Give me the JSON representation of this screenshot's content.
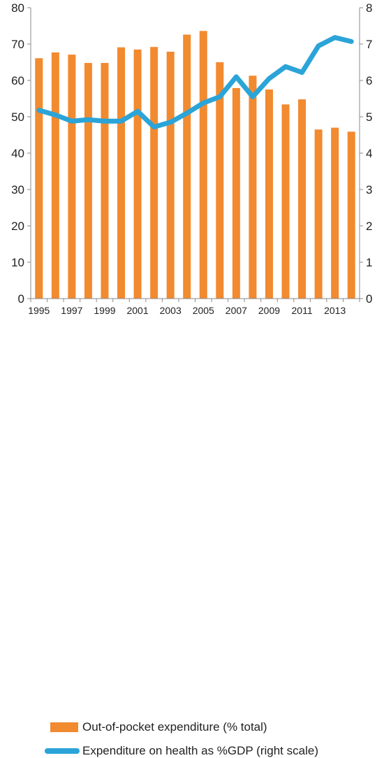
{
  "chart_data": {
    "type": "bar+line",
    "x": [
      1995,
      1996,
      1997,
      1998,
      1999,
      2000,
      2001,
      2002,
      2003,
      2004,
      2005,
      2006,
      2007,
      2008,
      2009,
      2010,
      2011,
      2012,
      2013,
      2014
    ],
    "x_tick_labels": [
      "1995",
      "1997",
      "1999",
      "2001",
      "2003",
      "2005",
      "2007",
      "2009",
      "2011",
      "2013"
    ],
    "left_axis": {
      "min": 0,
      "max": 80,
      "ticks": [
        "0",
        "10",
        "20",
        "30",
        "40",
        "50",
        "60",
        "70",
        "80"
      ]
    },
    "right_axis": {
      "min": 0,
      "max": 8,
      "ticks": [
        "0",
        "1",
        "2",
        "3",
        "4",
        "5",
        "6",
        "7",
        "8"
      ]
    },
    "series": [
      {
        "name": "Out-of-pocket expenditure (% total)",
        "type": "bar",
        "axis": "left",
        "color": "#f28a30",
        "values": [
          66.1,
          67.7,
          67.1,
          64.8,
          64.8,
          69.1,
          68.5,
          69.2,
          67.9,
          72.6,
          73.6,
          65.0,
          57.9,
          61.3,
          57.5,
          53.4,
          54.8,
          46.5,
          47.0,
          45.9
        ]
      },
      {
        "name": "Expenditure on health as %GDP (right scale)",
        "type": "line",
        "axis": "right",
        "color": "#2ba4d8",
        "values": [
          5.18,
          5.05,
          4.88,
          4.92,
          4.88,
          4.88,
          5.15,
          4.72,
          4.85,
          5.1,
          5.38,
          5.55,
          6.1,
          5.55,
          6.05,
          6.38,
          6.22,
          6.95,
          7.18,
          7.07
        ]
      }
    ],
    "legend_position": "bottom",
    "grid": false
  }
}
